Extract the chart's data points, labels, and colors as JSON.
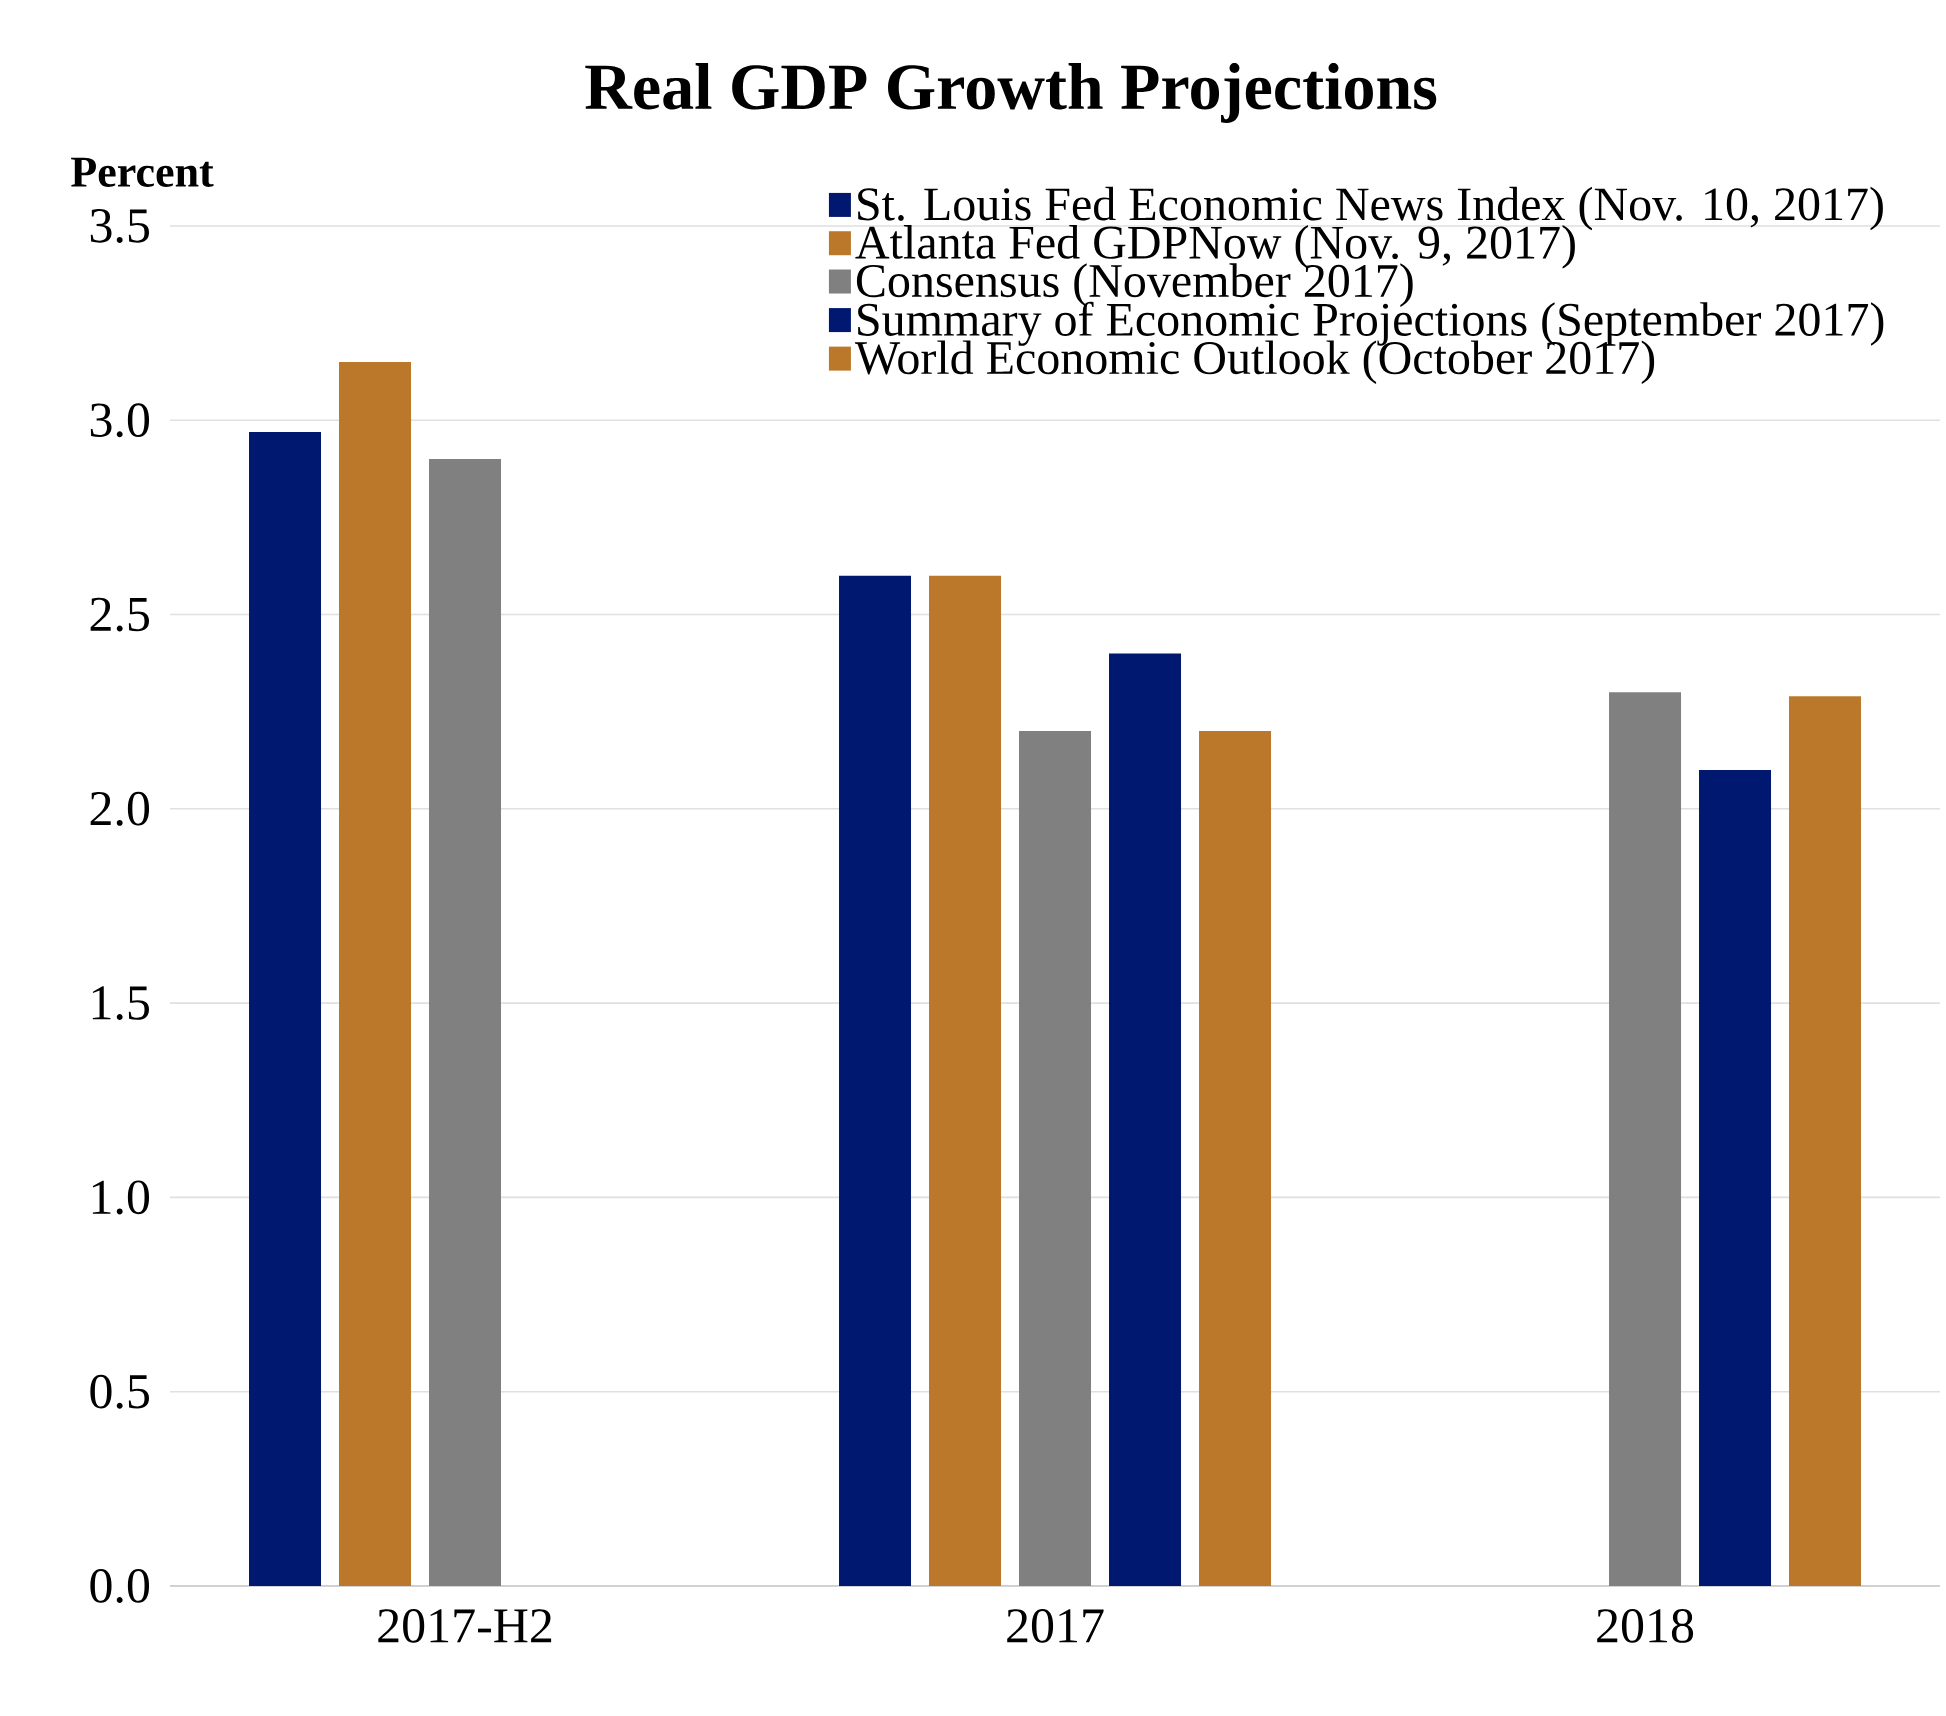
{
  "chart_data": {
    "type": "bar",
    "title": "Real GDP Growth Projections",
    "ylabel": "Percent",
    "categories": [
      "2017-H2",
      "2017",
      "2018"
    ],
    "series": [
      {
        "name": "St. Louis Fed Economic News Index (Nov. 10, 2017)",
        "color": "#00186f",
        "values": [
          2.97,
          2.6,
          null
        ]
      },
      {
        "name": "Atlanta Fed GDPNow (Nov. 9, 2017)",
        "color": "#bc782a",
        "values": [
          3.15,
          2.6,
          null
        ]
      },
      {
        "name": "Consensus (November 2017)",
        "color": "#808080",
        "values": [
          2.9,
          2.2,
          2.3
        ]
      },
      {
        "name": "Summary of Economic Projections (September 2017)",
        "color": "#00186f",
        "values": [
          null,
          2.4,
          2.1
        ]
      },
      {
        "name": "World Economic Outlook (October 2017)",
        "color": "#bc782a",
        "values": [
          null,
          2.2,
          2.29
        ]
      }
    ],
    "ylim": [
      0,
      3.5
    ],
    "yticks": [
      {
        "value": 0,
        "label": "0.0"
      },
      0.5,
      {
        "value": 1,
        "label": "1.0"
      },
      1.5,
      {
        "value": 2,
        "label": "2.0"
      },
      2.5,
      {
        "value": 3,
        "label": "3.0"
      },
      3.5
    ],
    "grid": "y",
    "legend": "top right"
  }
}
